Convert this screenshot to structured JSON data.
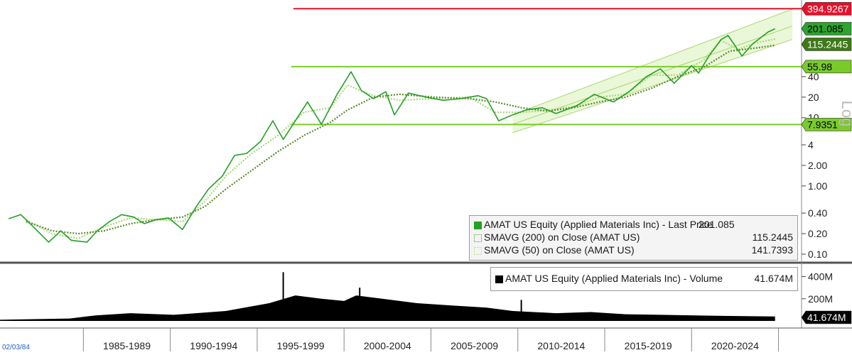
{
  "chart_data": {
    "type": "line",
    "price_panel": {
      "y_scale": "log",
      "y_ticks": [
        "0.10",
        "0.20",
        "0.40",
        "1.00",
        "2.00",
        "4",
        "10",
        "20",
        "40"
      ],
      "y_axis_label": "Log",
      "series": [
        {
          "name": "AMAT US Equity (Applied Materials Inc) - Last Price",
          "value": "201.085",
          "color": "#22a022",
          "points": [
            [
              "1980.5",
              0.33
            ],
            [
              "1981.2",
              0.38
            ],
            [
              "1982.0",
              0.24
            ],
            [
              "1982.8",
              0.15
            ],
            [
              "1983.5",
              0.22
            ],
            [
              "1984.1",
              0.16
            ],
            [
              "1985.0",
              0.15
            ],
            [
              "1985.6",
              0.22
            ],
            [
              "1986.3",
              0.3
            ],
            [
              "1987.0",
              0.38
            ],
            [
              "1987.7",
              0.35
            ],
            [
              "1988.3",
              0.28
            ],
            [
              "1989.0",
              0.32
            ],
            [
              "1989.7",
              0.34
            ],
            [
              "1990.5",
              0.23
            ],
            [
              "1991.3",
              0.5
            ],
            [
              "1992.0",
              0.9
            ],
            [
              "1992.8",
              1.4
            ],
            [
              "1993.5",
              2.8
            ],
            [
              "1994.2",
              3.0
            ],
            [
              "1995.0",
              4.5
            ],
            [
              "1995.7",
              9.0
            ],
            [
              "1996.3",
              4.8
            ],
            [
              "1997.0",
              9.0
            ],
            [
              "1997.7",
              17.0
            ],
            [
              "1998.5",
              8.0
            ],
            [
              "1999.4",
              22.0
            ],
            [
              "2000.2",
              47.0
            ],
            [
              "2000.8",
              25.0
            ],
            [
              "2001.5",
              19.0
            ],
            [
              "2002.2",
              24.0
            ],
            [
              "2002.7",
              11.0
            ],
            [
              "2003.5",
              23.0
            ],
            [
              "2004.5",
              20.0
            ],
            [
              "2005.5",
              18.0
            ],
            [
              "2006.5",
              19.0
            ],
            [
              "2007.5",
              21.0
            ],
            [
              "2008.0",
              19.0
            ],
            [
              "2008.7",
              9.0
            ],
            [
              "2009.5",
              11.0
            ],
            [
              "2010.3",
              13.0
            ],
            [
              "2011.2",
              14.0
            ],
            [
              "2012.0",
              11.5
            ],
            [
              "2013.2",
              15.0
            ],
            [
              "2014.2",
              22.0
            ],
            [
              "2015.3",
              17.0
            ],
            [
              "2016.2",
              24.0
            ],
            [
              "2017.2",
              40.0
            ],
            [
              "2018.0",
              52.0
            ],
            [
              "2018.8",
              32.0
            ],
            [
              "2019.8",
              58.0
            ],
            [
              "2020.2",
              45.0
            ],
            [
              "2020.8",
              80.0
            ],
            [
              "2021.5",
              140.0
            ],
            [
              "2021.9",
              160.0
            ],
            [
              "2022.7",
              80.0
            ],
            [
              "2023.3",
              120.0
            ],
            [
              "2024.2",
              180.0
            ],
            [
              "2024.6",
              201.085
            ]
          ]
        },
        {
          "name": "SMAVG (200) on Close (AMAT US)",
          "value": "115.2445",
          "color": "#5a8a2a",
          "points": [
            [
              "1981.5",
              0.3
            ],
            [
              "1983.0",
              0.22
            ],
            [
              "1984.5",
              0.2
            ],
            [
              "1986.0",
              0.22
            ],
            [
              "1987.5",
              0.28
            ],
            [
              "1989.0",
              0.32
            ],
            [
              "1990.5",
              0.35
            ],
            [
              "1991.8",
              0.5
            ],
            [
              "1993.0",
              0.9
            ],
            [
              "1994.5",
              1.7
            ],
            [
              "1996.0",
              3.2
            ],
            [
              "1997.5",
              5.5
            ],
            [
              "1999.0",
              8.5
            ],
            [
              "2000.0",
              13.0
            ],
            [
              "2001.5",
              20.0
            ],
            [
              "2003.0",
              22.0
            ],
            [
              "2005.0",
              20.0
            ],
            [
              "2007.0",
              19.0
            ],
            [
              "2008.5",
              17.0
            ],
            [
              "2010.0",
              14.0
            ],
            [
              "2011.5",
              12.5
            ],
            [
              "2013.0",
              14.0
            ],
            [
              "2014.5",
              17.0
            ],
            [
              "2016.0",
              20.0
            ],
            [
              "2017.5",
              27.0
            ],
            [
              "2019.0",
              40.0
            ],
            [
              "2020.5",
              55.0
            ],
            [
              "2022.0",
              95.0
            ],
            [
              "2023.5",
              105.0
            ],
            [
              "2024.6",
              115.2445
            ]
          ]
        },
        {
          "name": "SMAVG (50) on Close (AMAT US)",
          "value": "141.7393",
          "color": "#a8d878",
          "points": [
            [
              "1981.5",
              0.32
            ],
            [
              "1983.0",
              0.2
            ],
            [
              "1984.5",
              0.17
            ],
            [
              "1986.0",
              0.25
            ],
            [
              "1987.5",
              0.34
            ],
            [
              "1989.0",
              0.32
            ],
            [
              "1990.5",
              0.3
            ],
            [
              "1991.8",
              0.6
            ],
            [
              "1993.0",
              1.4
            ],
            [
              "1994.5",
              3.0
            ],
            [
              "1996.0",
              5.5
            ],
            [
              "1997.5",
              12.0
            ],
            [
              "1999.0",
              14.0
            ],
            [
              "2000.0",
              30.0
            ],
            [
              "2001.5",
              21.0
            ],
            [
              "2003.0",
              18.0
            ],
            [
              "2005.0",
              19.0
            ],
            [
              "2007.0",
              20.0
            ],
            [
              "2008.5",
              12.0
            ],
            [
              "2010.0",
              12.0
            ],
            [
              "2011.5",
              12.8
            ],
            [
              "2013.0",
              14.5
            ],
            [
              "2014.5",
              20.0
            ],
            [
              "2016.0",
              22.0
            ],
            [
              "2017.5",
              42.0
            ],
            [
              "2019.0",
              42.0
            ],
            [
              "2020.5",
              70.0
            ],
            [
              "2021.5",
              135.0
            ],
            [
              "2022.5",
              100.0
            ],
            [
              "2023.5",
              125.0
            ],
            [
              "2024.6",
              141.7393
            ]
          ]
        }
      ],
      "horizontal_lines": [
        {
          "value": "394.9267",
          "color": "#e8102a"
        },
        {
          "value": "55.98",
          "color": "#7acb2a"
        },
        {
          "value": "7.9351",
          "color": "#7acb2a"
        }
      ],
      "trend_channel": {
        "upper": [
          [
            "2009.5",
            11.0
          ],
          [
            "2025.6",
            390.0
          ]
        ],
        "middle": [
          [
            "2009.5",
            8.0
          ],
          [
            "2025.6",
            220.0
          ]
        ],
        "lower": [
          [
            "2009.5",
            6.0
          ],
          [
            "2025.6",
            140.0
          ]
        ],
        "fill": "#d9f0b8"
      },
      "value_badges": [
        "394.9267",
        "201.085",
        "115.2445",
        "55.98",
        "7.9351"
      ]
    },
    "volume_panel": {
      "series_name": "AMAT US Equity (Applied Materials Inc) - Volume",
      "last_value": "41.674M",
      "y_ticks": [
        "400M",
        "200M"
      ],
      "badge": "41.674M",
      "envelope": [
        [
          "1980.0",
          10
        ],
        [
          "1984.0",
          22
        ],
        [
          "1985.5",
          50
        ],
        [
          "1987.5",
          70
        ],
        [
          "1990.0",
          55
        ],
        [
          "1993.0",
          90
        ],
        [
          "1995.5",
          160
        ],
        [
          "1997.0",
          230
        ],
        [
          "1998.5",
          200
        ],
        [
          "1999.8",
          180
        ],
        [
          "2000.5",
          230
        ],
        [
          "2002.0",
          200
        ],
        [
          "2004.0",
          160
        ],
        [
          "2006.0",
          140
        ],
        [
          "2008.0",
          120
        ],
        [
          "2009.5",
          90
        ],
        [
          "2012.0",
          70
        ],
        [
          "2014.0",
          80
        ],
        [
          "2016.0",
          60
        ],
        [
          "2018.0",
          55
        ],
        [
          "2020.0",
          50
        ],
        [
          "2022.0",
          45
        ],
        [
          "2024.6",
          40
        ]
      ],
      "spikes": [
        [
          "1996.3",
          440
        ],
        [
          "2000.7",
          300
        ],
        [
          "2010.0",
          190
        ]
      ],
      "color": "#000000"
    },
    "x_axis": {
      "start_label": "02/03/84",
      "period_labels": [
        "1985-1989",
        "1990-1994",
        "1995-1999",
        "2000-2004",
        "2005-2009",
        "2010-2014",
        "2015-2019",
        "2020-2024"
      ]
    },
    "legend": {
      "price": [
        {
          "label": "AMAT US Equity (Applied Materials Inc) - Last Price",
          "value": "201.085",
          "color": "#22a022",
          "style": "solid"
        },
        {
          "label": "SMAVG (200)  on Close (AMAT US)",
          "value": "115.2445",
          "color": "#5a8a2a",
          "style": "dotted"
        },
        {
          "label": "SMAVG (50)  on Close (AMAT US)",
          "value": "141.7393",
          "color": "#a8d878",
          "style": "dotted"
        }
      ],
      "volume": {
        "label": "AMAT US Equity (Applied Materials Inc) - Volume",
        "value": "41.674M",
        "color": "#000000"
      }
    }
  }
}
